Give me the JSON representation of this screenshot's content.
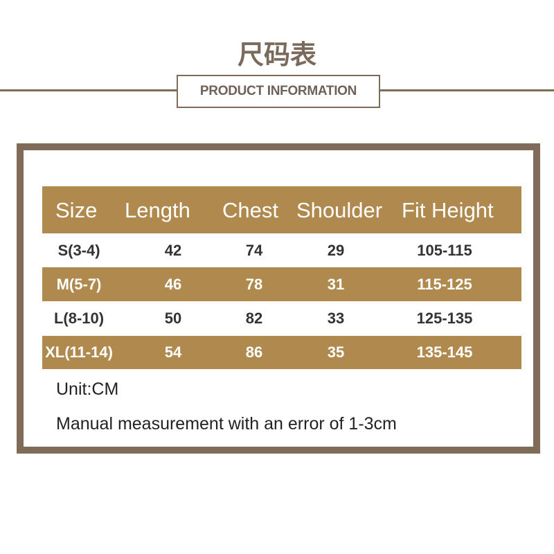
{
  "title": "尺码表",
  "subtitle": "PRODUCT INFORMATION",
  "table": {
    "headers": [
      "Size",
      "Length",
      "Chest",
      "Shoulder",
      "Fit Height"
    ],
    "rows": [
      [
        "S(3-4)",
        "42",
        "74",
        "29",
        "105-115"
      ],
      [
        "M(5-7)",
        "46",
        "78",
        "31",
        "115-125"
      ],
      [
        "L(8-10)",
        "50",
        "82",
        "33",
        "125-135"
      ],
      [
        "XL(11-14)",
        "54",
        "86",
        "35",
        "135-145"
      ]
    ]
  },
  "unit": "Unit:CM",
  "note": "Manual measurement with an error of 1-3cm",
  "colors": {
    "accent": "#b0894f",
    "frame": "#7f6b58"
  }
}
